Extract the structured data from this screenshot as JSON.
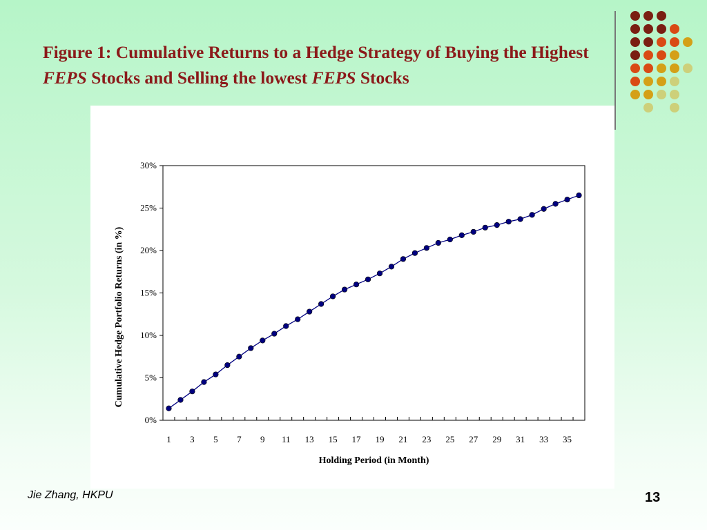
{
  "slide": {
    "title_part1": "Figure 1: Cumulative Returns to a Hedge Strategy of Buying the Highest ",
    "title_em1": "FEPS",
    "title_part2": " Stocks and Selling the lowest ",
    "title_em2": "FEPS",
    "title_part3": " Stocks",
    "author": "Jie Zhang, HKPU",
    "page_number": "13"
  },
  "decor_colors": [
    "#7a1f12",
    "#d94a14",
    "#d4a017",
    "#cdd07a"
  ],
  "chart_data": {
    "type": "line",
    "title": "",
    "xlabel": "Holding Period (in Month)",
    "ylabel": "Cumulative Hedge Portfolio Returns (in %)",
    "ylim": [
      0,
      30
    ],
    "yticks": [
      "0%",
      "5%",
      "10%",
      "15%",
      "20%",
      "25%",
      "30%"
    ],
    "xlim": [
      1,
      36
    ],
    "xtick_labels": [
      "1",
      "3",
      "5",
      "7",
      "9",
      "11",
      "13",
      "15",
      "17",
      "19",
      "21",
      "23",
      "25",
      "27",
      "29",
      "31",
      "33",
      "35"
    ],
    "grid": false,
    "legend": "none",
    "line_color": "#000080",
    "marker": "circle",
    "series": [
      {
        "x": [
          1,
          2,
          3,
          4,
          5,
          6,
          7,
          8,
          9,
          10,
          11,
          12,
          13,
          14,
          15,
          16,
          17,
          18,
          19,
          20,
          21,
          22,
          23,
          24,
          25,
          26,
          27,
          28,
          29,
          30,
          31,
          32,
          33,
          34,
          35,
          36
        ],
        "values": [
          1.4,
          2.4,
          3.4,
          4.5,
          5.4,
          6.5,
          7.5,
          8.5,
          9.4,
          10.2,
          11.1,
          11.9,
          12.8,
          13.7,
          14.6,
          15.4,
          16.0,
          16.6,
          17.3,
          18.1,
          19.0,
          19.7,
          20.3,
          20.9,
          21.3,
          21.8,
          22.2,
          22.7,
          23.0,
          23.4,
          23.7,
          24.2,
          24.9,
          25.5,
          26.0,
          26.5
        ]
      }
    ]
  }
}
